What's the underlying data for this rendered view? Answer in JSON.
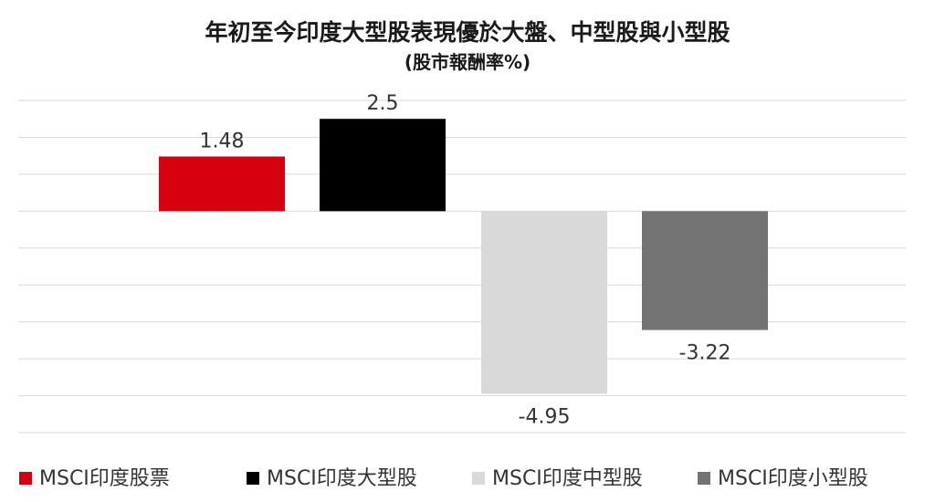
{
  "chart_data": {
    "type": "bar",
    "title": "年初至今印度大型股表現優於大盤、中型股與小型股",
    "subtitle": "(股市報酬率%)",
    "categories": [
      "MSCI印度股票",
      "MSCI印度大型股",
      "MSCI印度中型股",
      "MSCI印度小型股"
    ],
    "values": [
      1.48,
      2.5,
      -4.95,
      -3.22
    ],
    "colors": [
      "#d7000f",
      "#000000",
      "#d9d9d9",
      "#737373"
    ],
    "data_labels": [
      "1.48",
      "2.5",
      "-4.95",
      "-3.22"
    ],
    "ylim": [
      -6,
      3
    ],
    "grid": true,
    "legend_position": "bottom"
  }
}
